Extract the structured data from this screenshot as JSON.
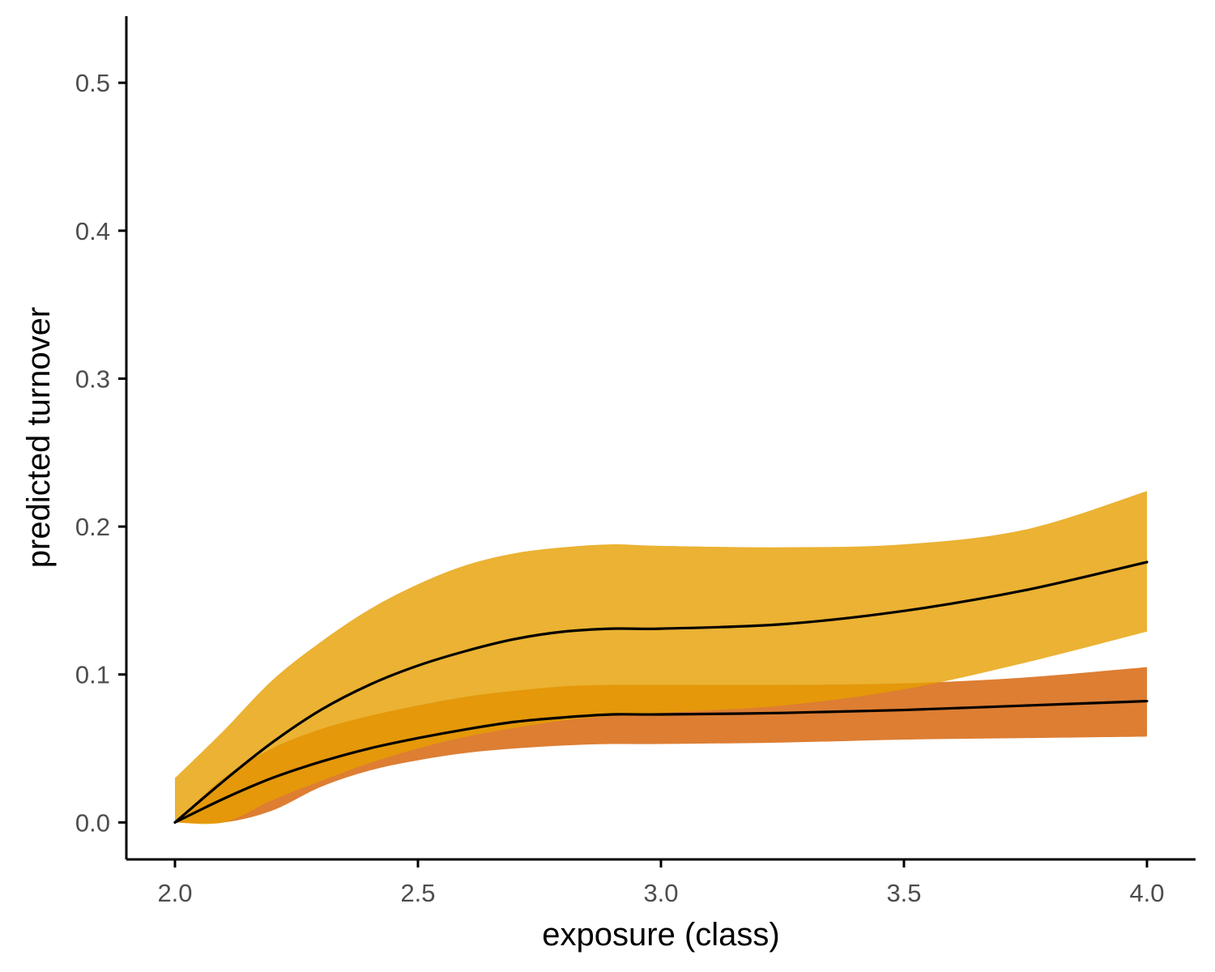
{
  "chart_data": {
    "type": "area",
    "title": "",
    "xlabel": "exposure (class)",
    "ylabel": "predicted turnover",
    "xlim": [
      1.9,
      4.1
    ],
    "ylim": [
      -0.025,
      0.545
    ],
    "x_ticks": [
      2.0,
      2.5,
      3.0,
      3.5,
      4.0
    ],
    "x_tick_labels": [
      "2.0",
      "2.5",
      "3.0",
      "3.5",
      "4.0"
    ],
    "y_ticks": [
      0.0,
      0.1,
      0.2,
      0.3,
      0.4,
      0.5
    ],
    "y_tick_labels": [
      "0.0",
      "0.1",
      "0.2",
      "0.3",
      "0.4",
      "0.5"
    ],
    "grid": false,
    "legend": "none",
    "series": [
      {
        "color": "#d55e00",
        "x": [
          2.0,
          2.1,
          2.2,
          2.3,
          2.4,
          2.5,
          2.6,
          2.7,
          2.8,
          2.9,
          3.0,
          3.25,
          3.5,
          3.75,
          4.0
        ],
        "fit": [
          0.0,
          0.016,
          0.03,
          0.041,
          0.05,
          0.057,
          0.063,
          0.068,
          0.071,
          0.073,
          0.073,
          0.074,
          0.076,
          0.079,
          0.082
        ],
        "lower": [
          0.0,
          0.0,
          0.008,
          0.024,
          0.035,
          0.042,
          0.047,
          0.05,
          0.052,
          0.053,
          0.053,
          0.054,
          0.056,
          0.057,
          0.058
        ],
        "upper": [
          0.0,
          0.03,
          0.05,
          0.063,
          0.072,
          0.079,
          0.085,
          0.089,
          0.092,
          0.093,
          0.093,
          0.093,
          0.094,
          0.098,
          0.105
        ]
      },
      {
        "color": "#e69f00",
        "x": [
          2.0,
          2.1,
          2.2,
          2.3,
          2.4,
          2.5,
          2.6,
          2.7,
          2.8,
          2.9,
          3.0,
          3.25,
          3.5,
          3.75,
          4.0
        ],
        "fit": [
          0.0,
          0.028,
          0.054,
          0.076,
          0.093,
          0.106,
          0.116,
          0.124,
          0.129,
          0.131,
          0.131,
          0.134,
          0.143,
          0.157,
          0.176
        ],
        "lower": [
          0.0,
          0.0,
          0.015,
          0.028,
          0.04,
          0.05,
          0.058,
          0.064,
          0.069,
          0.072,
          0.074,
          0.079,
          0.09,
          0.108,
          0.129
        ],
        "upper": [
          0.03,
          0.062,
          0.096,
          0.122,
          0.144,
          0.161,
          0.174,
          0.182,
          0.186,
          0.188,
          0.187,
          0.186,
          0.188,
          0.198,
          0.224
        ]
      }
    ]
  },
  "style": {
    "band_colors": [
      "#d55e00",
      "#e69f00"
    ],
    "band_opacity": 0.8,
    "line_color": "#000000",
    "axis_color": "#000000",
    "tick_label_color": "#4d4d4d"
  }
}
